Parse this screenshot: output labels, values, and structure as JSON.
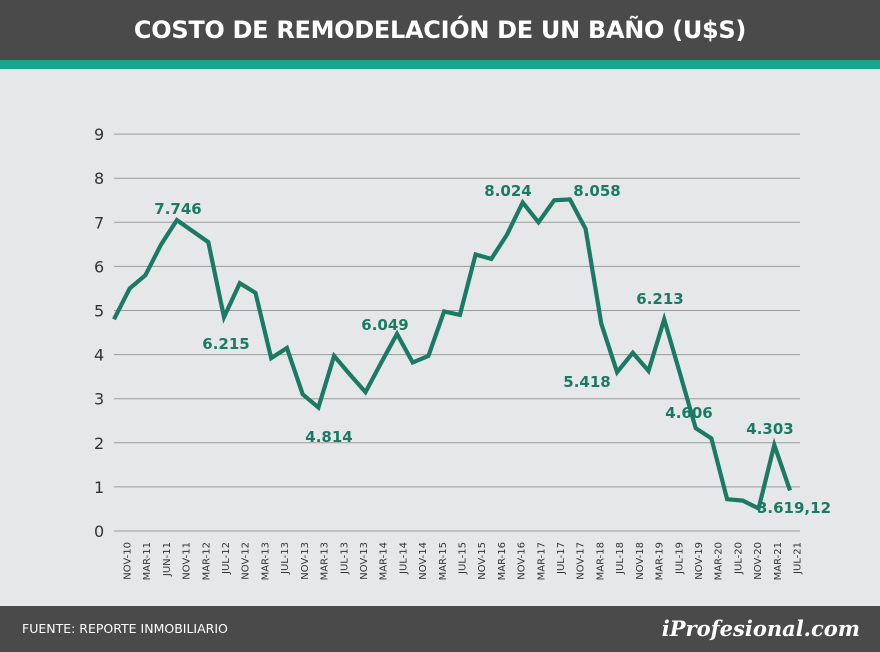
{
  "header": {
    "title": "COSTO DE REMODELACIÓN DE UN BAÑO (U$S)"
  },
  "footer": {
    "source": "FUENTE: REPORTE INMOBILIARIO",
    "brand": "iProfesional.com"
  },
  "colors": {
    "line": "#1a7a63",
    "header_bg": "#4a4a4a",
    "accent_stripe": "#1aa58e",
    "plot_bg": "#e6e7e8",
    "grid": "#9b9b9b"
  },
  "chart_data": {
    "type": "line",
    "title": "COSTO DE REMODELACIÓN DE UN BAÑO (U$S)",
    "xlabel": "",
    "ylabel": "",
    "ylim": [
      0,
      9
    ],
    "yticks": [
      0,
      1,
      2,
      3,
      4,
      5,
      6,
      7,
      8,
      9
    ],
    "grid": true,
    "x_tick_labels": [
      "NOV-10",
      "MAR-11",
      "JUN-11",
      "NOV-11",
      "MAR-12",
      "JUL-12",
      "NOV-12",
      "MAR-13",
      "JUL-13",
      "NOV-13",
      "MAR-13",
      "JUL-13",
      "NOV-13",
      "MAR-14",
      "JUL-14",
      "NOV-14",
      "MAR-15",
      "JUL-15",
      "NOV-15",
      "MAR-16",
      "NOV-16",
      "MAR-17",
      "JUL-17",
      "NOV-17",
      "MAR-18",
      "JUL-18",
      "NOV-18",
      "MAR-19",
      "JUL-19",
      "NOV-19",
      "MAR-20",
      "JUL-20",
      "NOV-20",
      "MAR-21",
      "JUL-21"
    ],
    "series": [
      {
        "values": [
          4.8,
          5.5,
          5.8,
          6.5,
          7.05,
          6.8,
          6.55,
          4.85,
          5.62,
          5.4,
          3.92,
          4.15,
          3.1,
          2.8,
          3.97,
          3.55,
          3.15,
          3.82,
          4.47,
          3.82,
          3.97,
          4.98,
          4.9,
          6.27,
          6.17,
          6.72,
          7.45,
          7.0,
          7.5,
          7.52,
          6.85,
          4.7,
          3.6,
          4.04,
          3.63,
          4.8,
          3.57,
          2.33,
          2.1,
          0.72,
          0.69,
          0.51,
          1.95,
          0.92
        ]
      }
    ],
    "annotations": [
      "7.746",
      "6.215",
      "4.814",
      "6.049",
      "8.024",
      "8.058",
      "5.418",
      "6.213",
      "4.606",
      "4.303",
      "3.619,12"
    ]
  }
}
